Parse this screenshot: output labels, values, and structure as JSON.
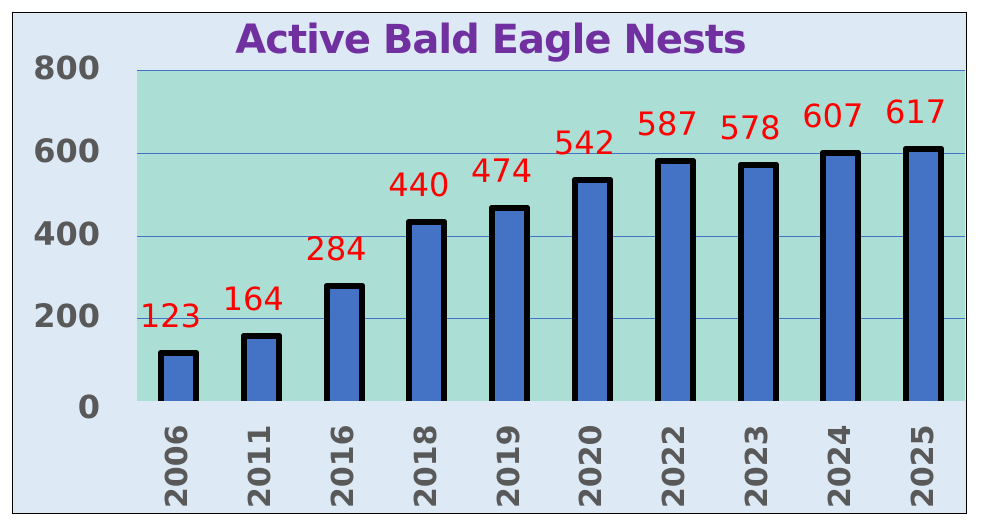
{
  "chart_data": {
    "type": "bar",
    "title": "Active Bald Eagle Nests",
    "xlabel": "",
    "ylabel": "",
    "ylim": [
      0,
      800
    ],
    "yticks": [
      0,
      200,
      400,
      600,
      800
    ],
    "grid": true,
    "legend": null,
    "categories": [
      "2006",
      "2011",
      "2016",
      "2018",
      "2019",
      "2020",
      "2022",
      "2023",
      "2024",
      "2025"
    ],
    "values": [
      123,
      164,
      284,
      440,
      474,
      542,
      587,
      578,
      607,
      617
    ],
    "data_labels": [
      "123",
      "164",
      "284",
      "440",
      "474",
      "542",
      "587",
      "578",
      "607",
      "617"
    ],
    "colors": {
      "title": "#7030a0",
      "bar_fill": "#4472c4",
      "bar_outline": "#000000",
      "data_label": "#ff0000",
      "plot_background": "#abdfd5",
      "chart_background": "#dde9f5",
      "gridline": "#4472c4",
      "axis_text": "#595959"
    }
  }
}
